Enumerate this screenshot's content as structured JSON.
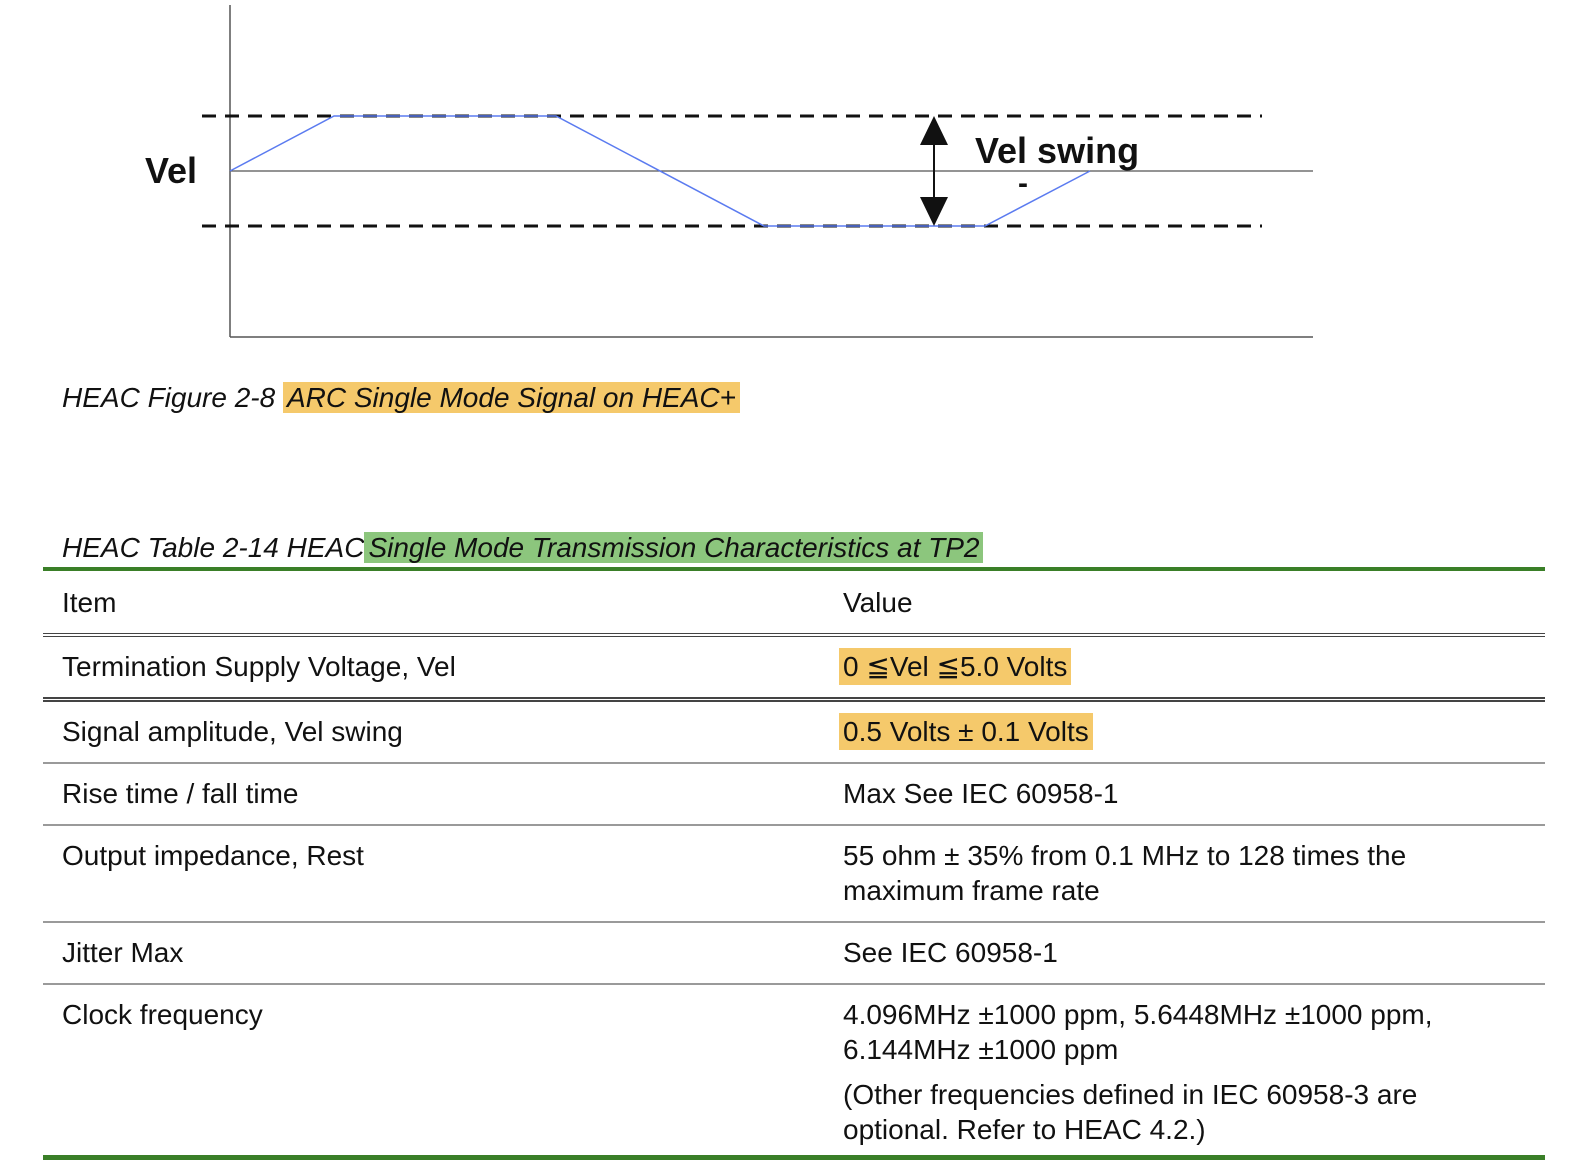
{
  "figure": {
    "y_label": "Vel",
    "swing_label": "Vel swing",
    "swing_sublabel": "-",
    "caption_prefix": "HEAC Figure 2-8",
    "caption_highlight": "ARC Single Mode Signal on HEAC+",
    "colors": {
      "signal": "#5b7bf0",
      "dashed": "#111111",
      "axis": "#555555"
    }
  },
  "table": {
    "caption_prefix": "HEAC Table 2-14 HEAC",
    "caption_highlight": "Single Mode Transmission Characteristics at TP2",
    "headers": {
      "item": "Item",
      "value": "Value"
    },
    "rows": [
      {
        "item": "Termination Supply Voltage, Vel",
        "value": "0 ≦Vel ≦5.0 Volts",
        "value2": "",
        "highlight": true
      },
      {
        "item": "Signal amplitude, Vel swing",
        "value": "0.5 Volts ± 0.1 Volts",
        "value2": "",
        "highlight": true
      },
      {
        "item": "Rise time / fall time",
        "value": "Max See IEC 60958-1",
        "value2": "",
        "highlight": false
      },
      {
        "item": "Output impedance, Rest",
        "value": "55 ohm ± 35% from 0.1 MHz to 128 times the maximum frame rate",
        "value2": "",
        "highlight": false
      },
      {
        "item": "Jitter Max",
        "value": "See IEC 60958-1",
        "value2": "",
        "highlight": false
      },
      {
        "item": "Clock frequency",
        "value": "4.096MHz ±1000 ppm, 5.6448MHz ±1000 ppm, 6.144MHz ±1000 ppm",
        "value2": "(Other frequencies defined in IEC 60958-3 are optional. Refer to HEAC 4.2.)",
        "highlight": false
      }
    ],
    "colors": {
      "rule_green": "#3a7f28",
      "highlight_yellow": "#f5c96b",
      "highlight_green": "#8cc67d"
    }
  }
}
